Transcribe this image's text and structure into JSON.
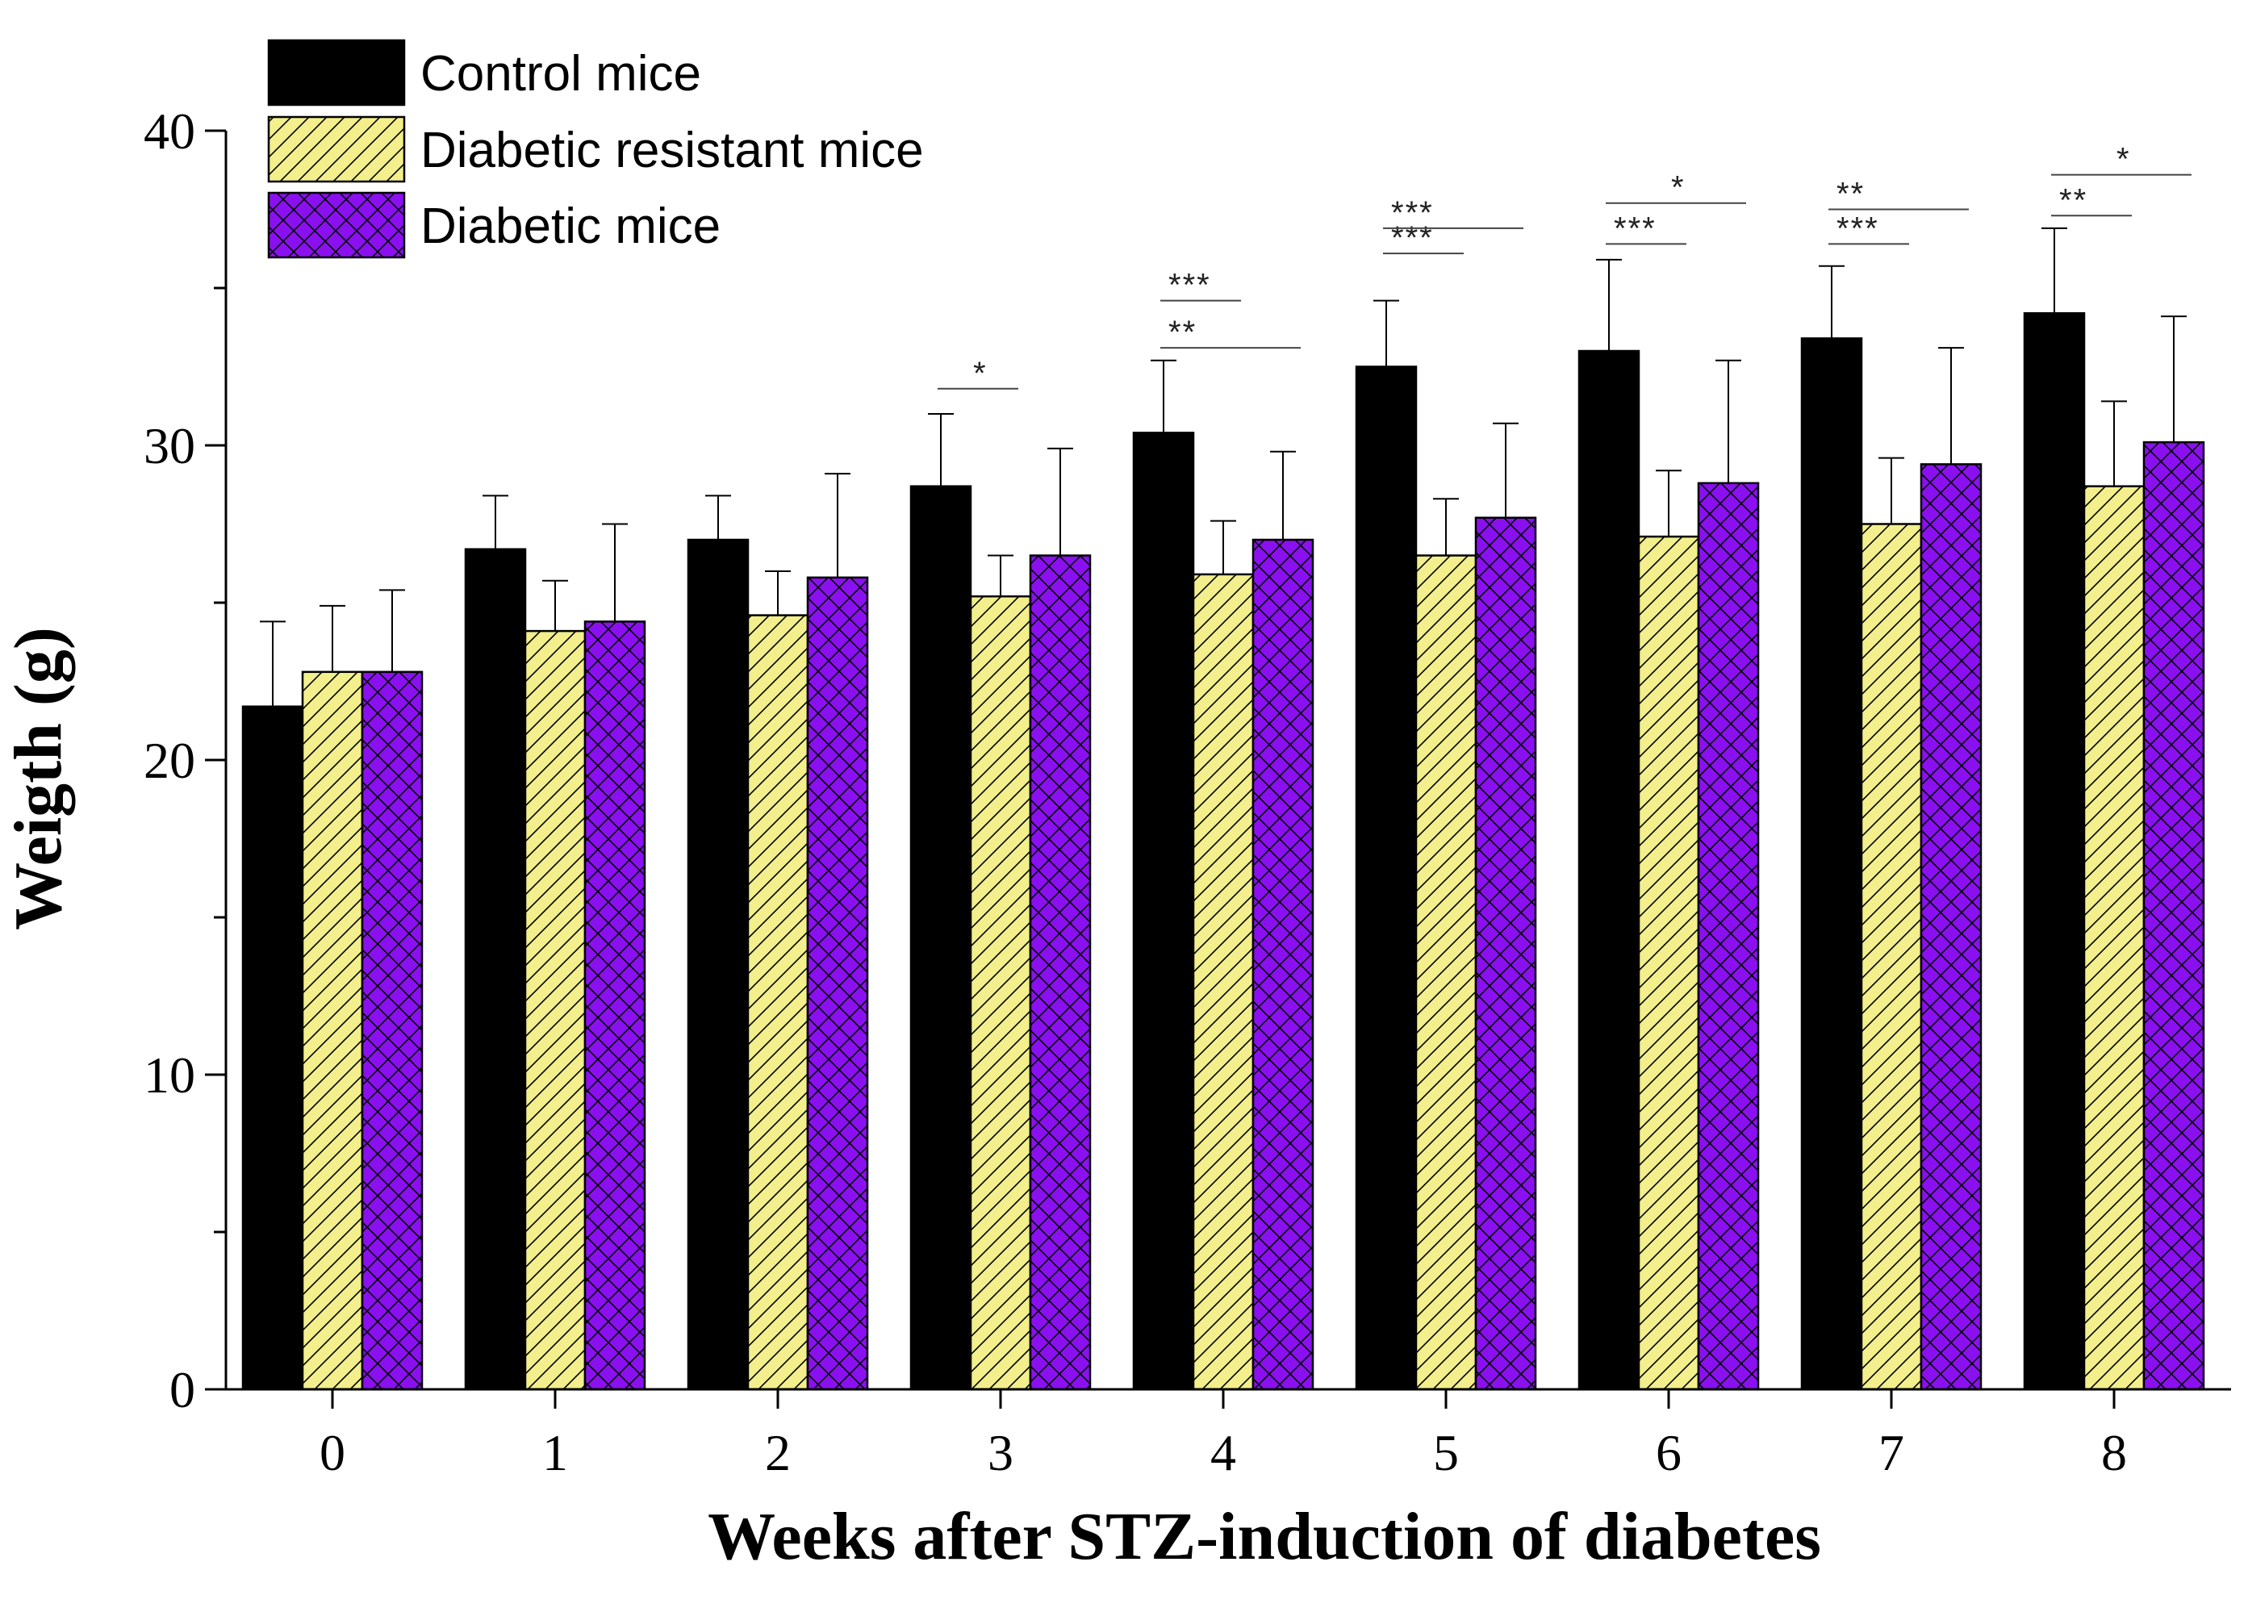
{
  "chart_data": {
    "type": "bar",
    "title": "",
    "xlabel": "Weeks after STZ-induction of diabetes",
    "ylabel": "Weigth (g)",
    "ylim": [
      0,
      40
    ],
    "yticks": [
      "0",
      "10",
      "20",
      "30",
      "40"
    ],
    "categories": [
      "0",
      "1",
      "2",
      "3",
      "4",
      "5",
      "6",
      "7",
      "8"
    ],
    "legend_position": "top-left",
    "grid": false,
    "series": [
      {
        "name": "Control mice",
        "color": "#000000",
        "pattern": "solid",
        "values": [
          21.7,
          26.7,
          27.0,
          28.7,
          30.4,
          32.5,
          33.0,
          33.4,
          34.2
        ],
        "errors": [
          2.7,
          1.7,
          1.4,
          2.3,
          2.3,
          2.1,
          2.9,
          2.3,
          2.7
        ]
      },
      {
        "name": "Diabetic resistant mice",
        "color": "#f2ef8c",
        "pattern": "diagonal-hatch",
        "values": [
          22.8,
          24.1,
          24.6,
          25.2,
          25.9,
          26.5,
          27.1,
          27.5,
          28.7
        ],
        "errors": [
          2.1,
          1.6,
          1.4,
          1.3,
          1.7,
          1.8,
          2.1,
          2.1,
          2.7
        ]
      },
      {
        "name": "Diabetic mice",
        "color": "#8b10f0",
        "pattern": "cross-hatch",
        "values": [
          22.8,
          24.4,
          25.8,
          26.5,
          27.0,
          27.7,
          28.8,
          29.4,
          30.1
        ],
        "errors": [
          2.6,
          3.1,
          3.3,
          3.4,
          2.8,
          3.0,
          3.9,
          3.7,
          4.0
        ]
      }
    ],
    "significance": [
      {
        "category": 3,
        "from": 0,
        "to": 1,
        "label": "*",
        "y": 31.8
      },
      {
        "category": 4,
        "from": 0,
        "to": 1,
        "label": "***",
        "y": 34.6
      },
      {
        "category": 4,
        "from": 0,
        "to": 2,
        "label": "**",
        "y": 33.1
      },
      {
        "category": 5,
        "from": 0,
        "to": 1,
        "label": "***",
        "y": 36.1
      },
      {
        "category": 5,
        "from": 0,
        "to": 2,
        "label": "***",
        "y": 36.9
      },
      {
        "category": 6,
        "from": 0,
        "to": 1,
        "label": "***",
        "y": 36.4
      },
      {
        "category": 6,
        "from": 0,
        "to": 2,
        "label": "*",
        "y": 37.7
      },
      {
        "category": 7,
        "from": 0,
        "to": 1,
        "label": "***",
        "y": 36.4
      },
      {
        "category": 7,
        "from": 0,
        "to": 2,
        "label": "**",
        "y": 37.5
      },
      {
        "category": 8,
        "from": 0,
        "to": 1,
        "label": "**",
        "y": 37.3
      },
      {
        "category": 8,
        "from": 0,
        "to": 2,
        "label": "*",
        "y": 38.6
      }
    ]
  }
}
